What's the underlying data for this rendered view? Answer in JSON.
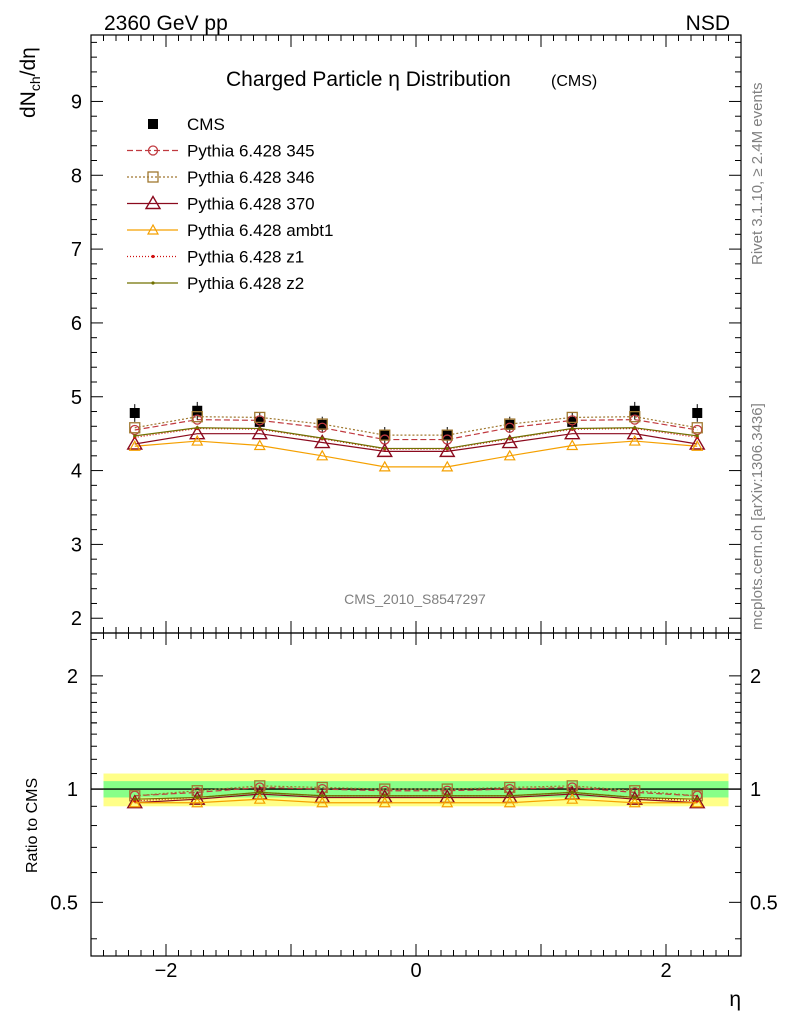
{
  "header": {
    "left": "2360 GeV pp",
    "right": "NSD"
  },
  "side_labels": {
    "rivet": "Rivet 3.1.10, ≥ 2.4M events",
    "mcplots": "mcplots.cern.ch [arXiv:1306.3436]"
  },
  "watermark": "CMS_2010_S8547297",
  "chart_data": [
    {
      "type": "line",
      "panel": "main",
      "title": "Charged Particle η Distribution",
      "title_suffix": "(CMS)",
      "ylabel": "dN_ch/dη",
      "xlabel": "η",
      "xlim": [
        -2.6,
        2.6
      ],
      "ylim": [
        1.8,
        9.9
      ],
      "yticks": [
        2,
        3,
        4,
        5,
        6,
        7,
        8,
        9
      ],
      "x": [
        -2.25,
        -1.75,
        -1.25,
        -0.75,
        -0.25,
        0.25,
        0.75,
        1.25,
        1.75,
        2.25
      ],
      "legend_placement": "top-left",
      "series": [
        {
          "name": "CMS",
          "color": "#000000",
          "style": "data",
          "marker": "square",
          "values": [
            4.78,
            4.81,
            4.66,
            4.62,
            4.48,
            4.48,
            4.62,
            4.66,
            4.81,
            4.78
          ],
          "errors": [
            0.12,
            0.12,
            0.12,
            0.11,
            0.11,
            0.11,
            0.11,
            0.12,
            0.12,
            0.12
          ]
        },
        {
          "name": "Pythia 6.428 345",
          "color": "#c0393f",
          "dash": "6,3",
          "marker": "circle",
          "values": [
            4.55,
            4.69,
            4.68,
            4.58,
            4.42,
            4.42,
            4.58,
            4.68,
            4.69,
            4.55
          ]
        },
        {
          "name": "Pythia 6.428 346",
          "color": "#a07830",
          "dash": "2,2",
          "marker": "square-open",
          "values": [
            4.58,
            4.73,
            4.72,
            4.63,
            4.48,
            4.48,
            4.63,
            4.72,
            4.73,
            4.58
          ]
        },
        {
          "name": "Pythia 6.428 370",
          "color": "#8b0a1e",
          "dash": "",
          "marker": "triangle",
          "values": [
            4.36,
            4.5,
            4.5,
            4.38,
            4.26,
            4.26,
            4.38,
            4.5,
            4.5,
            4.36
          ]
        },
        {
          "name": "Pythia 6.428 ambt1",
          "color": "#f5a000",
          "dash": "",
          "marker": "triangle-small",
          "values": [
            4.33,
            4.4,
            4.34,
            4.2,
            4.05,
            4.05,
            4.2,
            4.34,
            4.4,
            4.33
          ]
        },
        {
          "name": "Pythia 6.428 z1",
          "color": "#d01010",
          "dash": "1,2",
          "marker": "dot",
          "values": [
            4.45,
            4.57,
            4.56,
            4.43,
            4.29,
            4.29,
            4.43,
            4.56,
            4.57,
            4.45
          ]
        },
        {
          "name": "Pythia 6.428 z2",
          "color": "#707000",
          "dash": "",
          "marker": "dot",
          "values": [
            4.47,
            4.58,
            4.57,
            4.44,
            4.3,
            4.3,
            4.44,
            4.57,
            4.58,
            4.47
          ]
        }
      ]
    },
    {
      "type": "line",
      "panel": "ratio",
      "ylabel": "Ratio to CMS",
      "xlabel": "η",
      "xlim": [
        -2.6,
        2.6
      ],
      "ylog": true,
      "ylim": [
        0.36,
        2.6
      ],
      "yticks": [
        0.5,
        1,
        2
      ],
      "xticks": [
        -2,
        0,
        2
      ],
      "x": [
        -2.25,
        -1.75,
        -1.25,
        -0.75,
        -0.25,
        0.25,
        0.75,
        1.25,
        1.75,
        2.25
      ],
      "bands": {
        "inner": 0.05,
        "outer": 0.1
      },
      "series": [
        {
          "name": "Pythia 6.428 345",
          "values": [
            0.96,
            0.98,
            1.01,
            1.0,
            0.99,
            0.99,
            1.0,
            1.01,
            0.98,
            0.96
          ]
        },
        {
          "name": "Pythia 6.428 346",
          "values": [
            0.96,
            0.99,
            1.02,
            1.01,
            1.0,
            1.0,
            1.01,
            1.02,
            0.99,
            0.96
          ]
        },
        {
          "name": "Pythia 6.428 370",
          "values": [
            0.92,
            0.94,
            0.97,
            0.95,
            0.95,
            0.95,
            0.95,
            0.97,
            0.94,
            0.92
          ]
        },
        {
          "name": "Pythia 6.428 ambt1",
          "values": [
            0.92,
            0.92,
            0.94,
            0.92,
            0.92,
            0.92,
            0.92,
            0.94,
            0.92,
            0.92
          ]
        },
        {
          "name": "Pythia 6.428 z1",
          "values": [
            0.93,
            0.95,
            0.98,
            0.96,
            0.96,
            0.96,
            0.96,
            0.98,
            0.95,
            0.93
          ]
        },
        {
          "name": "Pythia 6.428 z2",
          "values": [
            0.94,
            0.95,
            0.98,
            0.96,
            0.96,
            0.96,
            0.96,
            0.98,
            0.95,
            0.94
          ]
        }
      ]
    }
  ]
}
